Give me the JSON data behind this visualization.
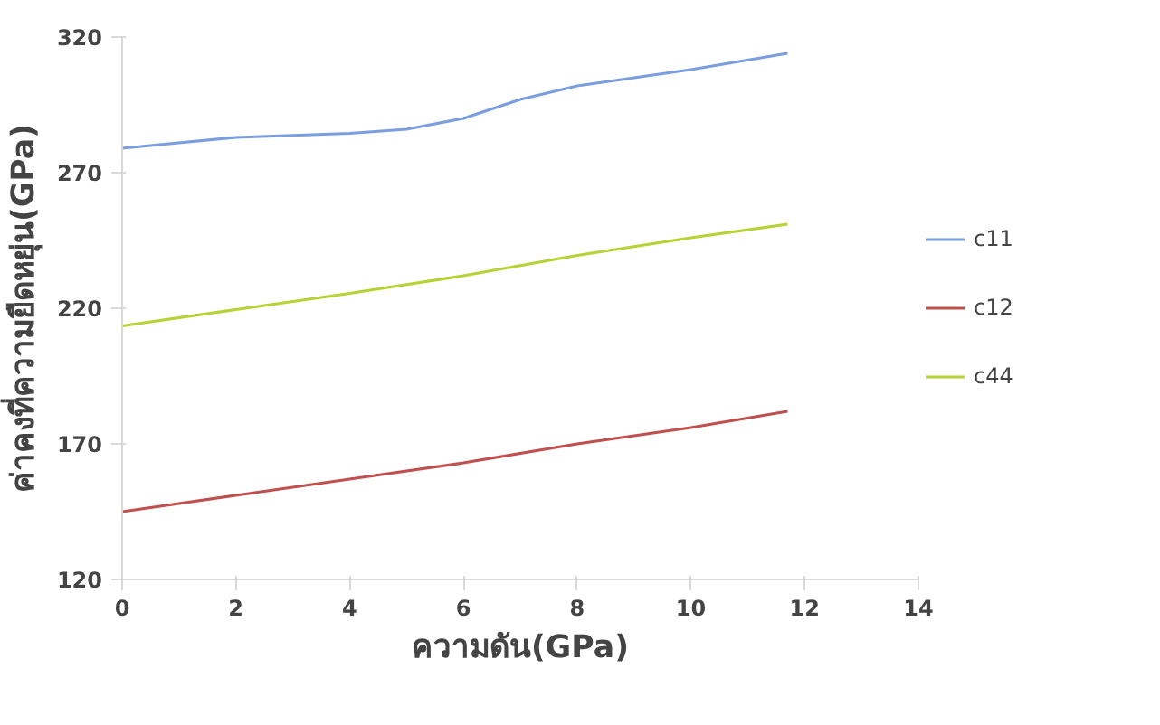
{
  "chart_data": {
    "type": "line",
    "xlabel": "ความดัน(GPa)",
    "ylabel": "ค่าคงที่ความยืดหยุ่น(GPa)",
    "xlim": [
      0,
      14
    ],
    "xticks": [
      0,
      2,
      4,
      6,
      8,
      10,
      12,
      14
    ],
    "ylim": [
      120,
      320
    ],
    "yticks": [
      120,
      170,
      220,
      270,
      320
    ],
    "grid": false,
    "legend": "right",
    "marker": "none",
    "line_style": "solid",
    "series": [
      {
        "name": "c11",
        "color": "#7b9ee0",
        "x": [
          0,
          2,
          4,
          5,
          6,
          7,
          8,
          10,
          11.7
        ],
        "values": [
          279,
          283,
          284.5,
          286,
          290,
          297,
          302,
          308,
          314
        ]
      },
      {
        "name": "c12",
        "color": "#c0504d",
        "x": [
          0,
          2,
          4,
          6,
          8,
          10,
          11.7
        ],
        "values": [
          145,
          151,
          157,
          163,
          170,
          176,
          182
        ]
      },
      {
        "name": "c44",
        "color": "#b5d334",
        "x": [
          0,
          2,
          4,
          6,
          8,
          10,
          11.7
        ],
        "values": [
          213.5,
          219.5,
          225.5,
          232,
          239.5,
          246,
          251
        ]
      }
    ]
  }
}
